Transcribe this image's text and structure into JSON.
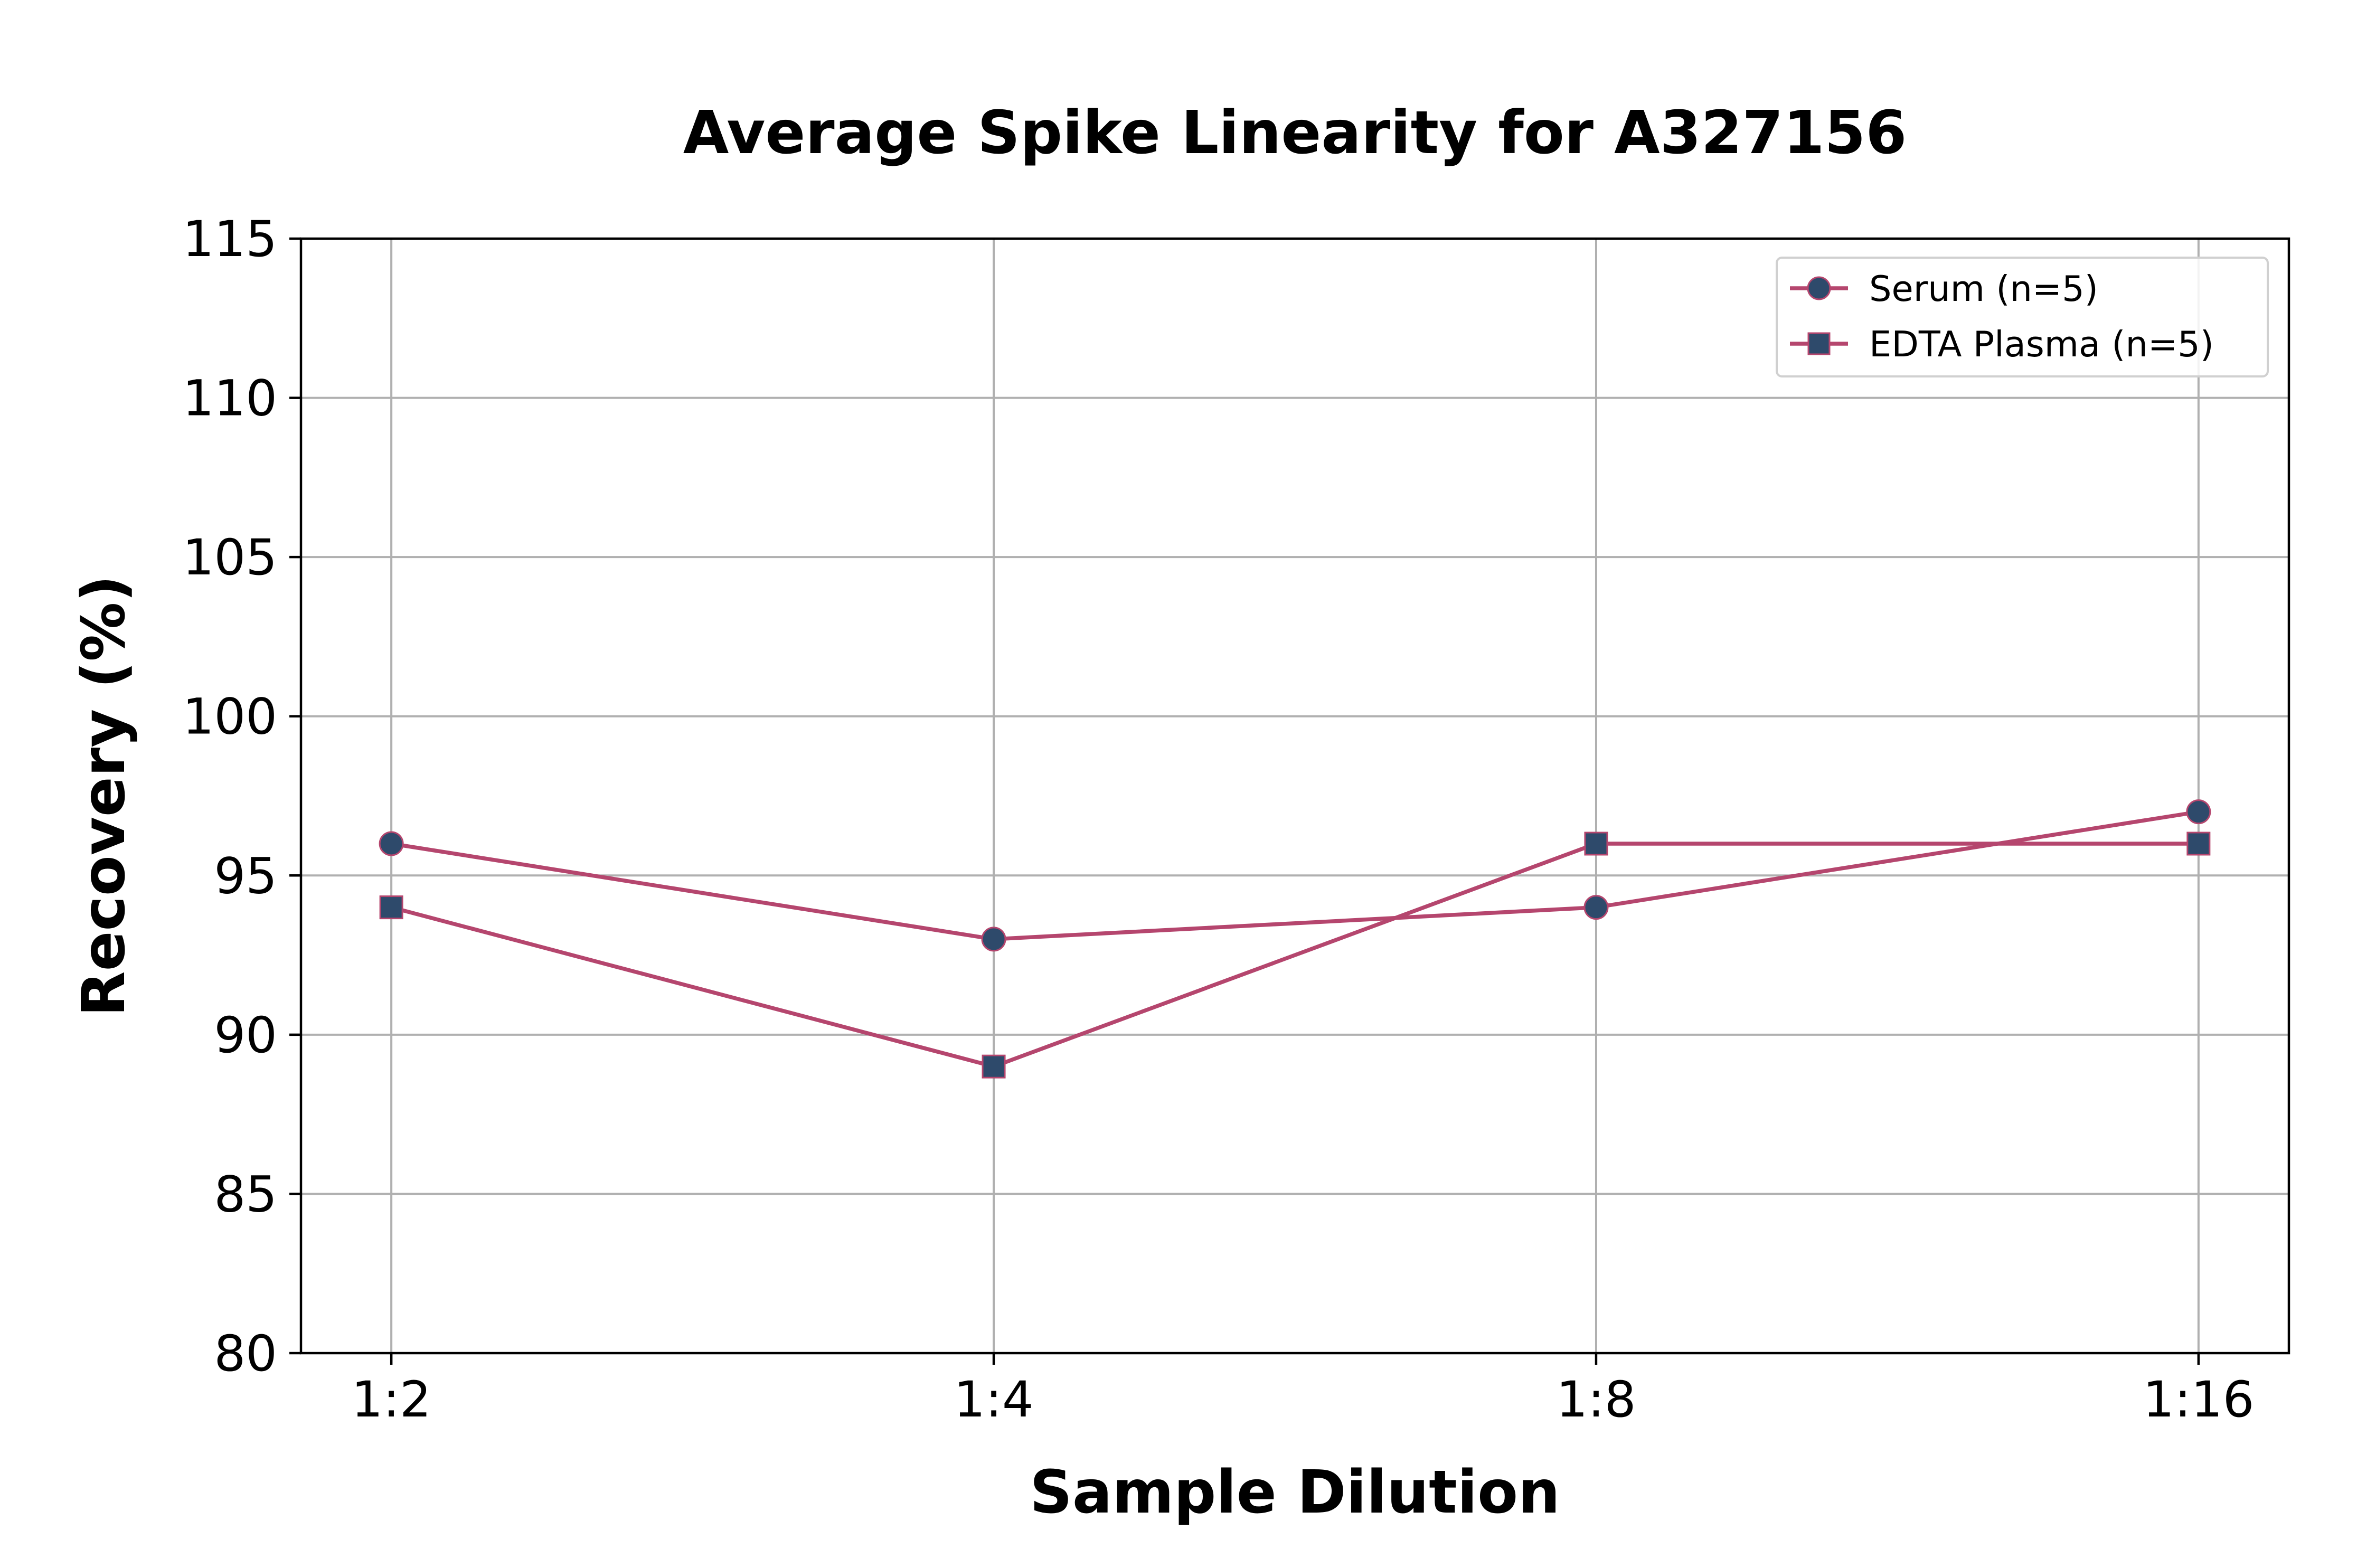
{
  "chart_data": {
    "type": "line",
    "title": "Average Spike Linearity for A327156",
    "xlabel": "Sample Dilution",
    "ylabel": "Recovery (%)",
    "categories": [
      "1:2",
      "1:4",
      "1:8",
      "1:16"
    ],
    "ylim": [
      80,
      115
    ],
    "yticks": [
      80,
      85,
      90,
      95,
      100,
      105,
      110,
      115
    ],
    "grid": true,
    "legend_position": "top-right",
    "series": [
      {
        "name": "Serum (n=5)",
        "values": [
          96,
          93,
          94,
          97
        ],
        "marker": "circle",
        "line_color": "#b5466e",
        "marker_color": "#2e4a6b"
      },
      {
        "name": "EDTA Plasma (n=5)",
        "values": [
          94,
          89,
          96,
          96
        ],
        "marker": "square",
        "line_color": "#b5466e",
        "marker_color": "#2e4a6b"
      }
    ]
  }
}
